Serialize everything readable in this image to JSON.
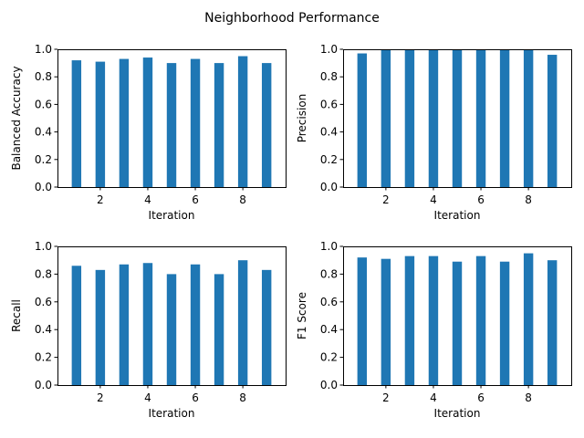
{
  "suptitle": "Neighborhood Performance",
  "bar_color": "#1f77b4",
  "chart_data": [
    {
      "type": "bar",
      "title": "",
      "xlabel": "Iteration",
      "ylabel": "Balanced Accuracy",
      "x": [
        1,
        2,
        3,
        4,
        5,
        6,
        7,
        8,
        9
      ],
      "values": [
        0.92,
        0.91,
        0.93,
        0.94,
        0.9,
        0.93,
        0.9,
        0.95,
        0.9
      ],
      "xlim": [
        0.2,
        9.8
      ],
      "ylim": [
        0,
        1.0
      ],
      "xticks": [
        2,
        4,
        6,
        8
      ],
      "xtick_labels": [
        "2",
        "4",
        "6",
        "8"
      ],
      "yticks": [
        0,
        0.2,
        0.4,
        0.6,
        0.8,
        1.0
      ],
      "ytick_labels": [
        "0.0",
        "0.2",
        "0.4",
        "0.6",
        "0.8",
        "1.0"
      ]
    },
    {
      "type": "bar",
      "title": "",
      "xlabel": "Iteration",
      "ylabel": "Precision",
      "x": [
        1,
        2,
        3,
        4,
        5,
        6,
        7,
        8,
        9
      ],
      "values": [
        0.97,
        1.0,
        1.0,
        1.0,
        1.0,
        1.0,
        1.0,
        1.0,
        0.96
      ],
      "xlim": [
        0.2,
        9.8
      ],
      "ylim": [
        0,
        1.0
      ],
      "xticks": [
        2,
        4,
        6,
        8
      ],
      "xtick_labels": [
        "2",
        "4",
        "6",
        "8"
      ],
      "yticks": [
        0,
        0.2,
        0.4,
        0.6,
        0.8,
        1.0
      ],
      "ytick_labels": [
        "0.0",
        "0.2",
        "0.4",
        "0.6",
        "0.8",
        "1.0"
      ]
    },
    {
      "type": "bar",
      "title": "",
      "xlabel": "Iteration",
      "ylabel": "Recall",
      "x": [
        1,
        2,
        3,
        4,
        5,
        6,
        7,
        8,
        9
      ],
      "values": [
        0.86,
        0.83,
        0.87,
        0.88,
        0.8,
        0.87,
        0.8,
        0.9,
        0.83
      ],
      "xlim": [
        0.2,
        9.8
      ],
      "ylim": [
        0,
        1.0
      ],
      "xticks": [
        2,
        4,
        6,
        8
      ],
      "xtick_labels": [
        "2",
        "4",
        "6",
        "8"
      ],
      "yticks": [
        0,
        0.2,
        0.4,
        0.6,
        0.8,
        1.0
      ],
      "ytick_labels": [
        "0.0",
        "0.2",
        "0.4",
        "0.6",
        "0.8",
        "1.0"
      ]
    },
    {
      "type": "bar",
      "title": "",
      "xlabel": "Iteration",
      "ylabel": "F1 Score",
      "x": [
        1,
        2,
        3,
        4,
        5,
        6,
        7,
        8,
        9
      ],
      "values": [
        0.92,
        0.91,
        0.93,
        0.93,
        0.89,
        0.93,
        0.89,
        0.95,
        0.9
      ],
      "xlim": [
        0.2,
        9.8
      ],
      "ylim": [
        0,
        1.0
      ],
      "xticks": [
        2,
        4,
        6,
        8
      ],
      "xtick_labels": [
        "2",
        "4",
        "6",
        "8"
      ],
      "yticks": [
        0,
        0.2,
        0.4,
        0.6,
        0.8,
        1.0
      ],
      "ytick_labels": [
        "0.0",
        "0.2",
        "0.4",
        "0.6",
        "0.8",
        "1.0"
      ]
    }
  ]
}
